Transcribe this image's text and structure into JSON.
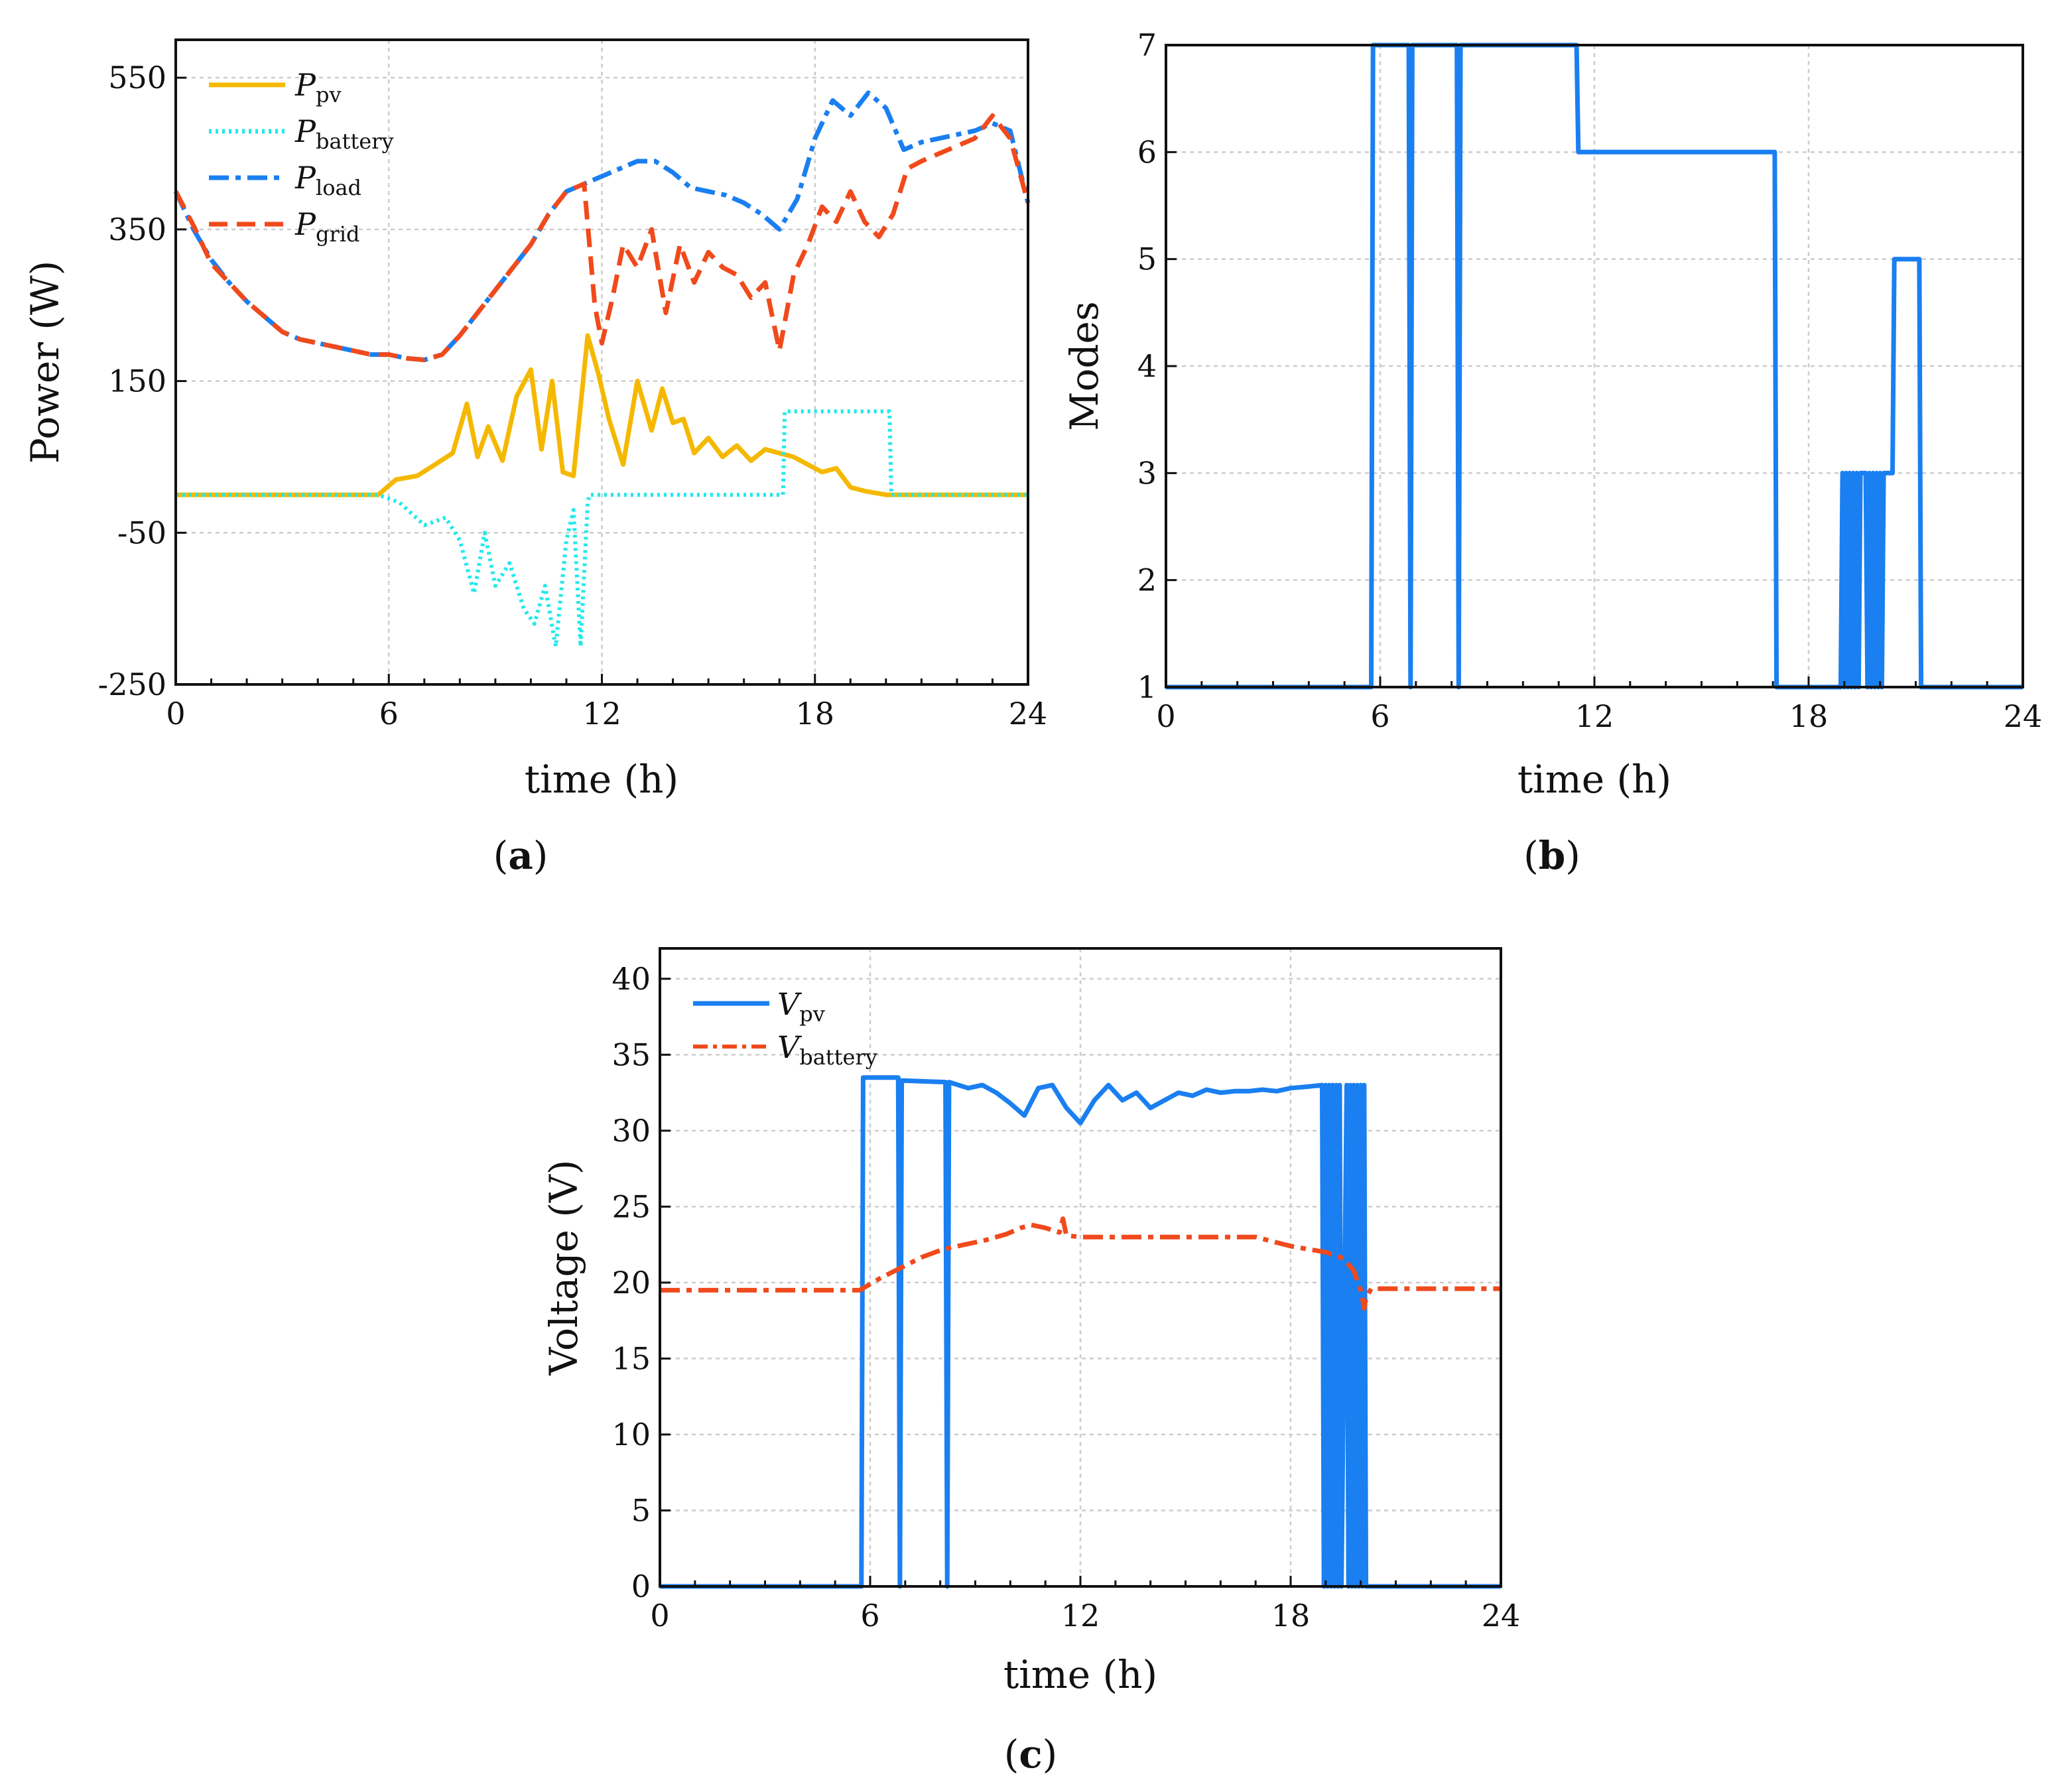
{
  "chart_data": [
    {
      "type": "line",
      "panel": "(a)",
      "panel_letter": "a",
      "xlabel": "time (h)",
      "ylabel": "Power (W)",
      "xlim": [
        0,
        24
      ],
      "ylim": [
        -250,
        600
      ],
      "xticks": [
        0,
        6,
        12,
        18,
        24
      ],
      "yticks": [
        -250,
        -50,
        150,
        350,
        550
      ],
      "xtick_labels": [
        "0",
        "6",
        "12",
        "18",
        "24"
      ],
      "ytick_labels": [
        "-250",
        "-50",
        "150",
        "350",
        "550"
      ],
      "grid": true,
      "legend_position": "top-left",
      "series": [
        {
          "name": "P_pv",
          "symbol": "P",
          "subscript": "pv",
          "color": "#f5b800",
          "style": "solid",
          "x": [
            0,
            5.7,
            6.2,
            6.8,
            7.3,
            7.8,
            8.2,
            8.5,
            8.8,
            9.2,
            9.6,
            10.0,
            10.3,
            10.6,
            10.9,
            11.2,
            11.6,
            11.9,
            12.2,
            12.6,
            13.0,
            13.4,
            13.7,
            14.0,
            14.3,
            14.6,
            15.0,
            15.4,
            15.8,
            16.2,
            16.6,
            17.0,
            17.4,
            17.8,
            18.2,
            18.6,
            19.0,
            19.4,
            20.0,
            24
          ],
          "values": [
            0,
            0,
            20,
            25,
            40,
            55,
            120,
            50,
            90,
            45,
            130,
            165,
            60,
            150,
            30,
            25,
            210,
            160,
            100,
            40,
            150,
            85,
            140,
            95,
            100,
            55,
            75,
            50,
            65,
            45,
            60,
            55,
            50,
            40,
            30,
            35,
            10,
            5,
            0,
            0
          ]
        },
        {
          "name": "P_battery",
          "symbol": "P",
          "subscript": "battery",
          "color": "#22e8ea",
          "style": "dotted",
          "x": [
            0,
            5.7,
            6.3,
            7.0,
            7.6,
            8.0,
            8.4,
            8.7,
            9.0,
            9.4,
            9.8,
            10.1,
            10.4,
            10.7,
            11.0,
            11.2,
            11.4,
            11.6,
            11.65,
            17.1,
            17.15,
            20.1,
            20.15,
            24
          ],
          "values": [
            0,
            0,
            -10,
            -40,
            -30,
            -60,
            -130,
            -50,
            -120,
            -90,
            -150,
            -170,
            -120,
            -200,
            -60,
            -20,
            -200,
            -10,
            0,
            0,
            110,
            110,
            0,
            0
          ]
        },
        {
          "name": "P_load",
          "symbol": "P",
          "subscript": "load",
          "color": "#1a7ff0",
          "style": "dashdot",
          "x": [
            0,
            0.5,
            1.0,
            1.5,
            2.0,
            2.5,
            3.0,
            3.5,
            4.0,
            4.5,
            5.0,
            5.5,
            6.0,
            6.5,
            7.0,
            7.5,
            8.0,
            8.5,
            9.0,
            9.5,
            10.0,
            10.5,
            11.0,
            11.5,
            12.0,
            12.5,
            13.0,
            13.5,
            14.0,
            14.5,
            15.0,
            15.5,
            16.0,
            16.5,
            17.0,
            17.5,
            18.0,
            18.5,
            19.0,
            19.5,
            20.0,
            20.5,
            21.0,
            21.5,
            22.0,
            22.5,
            23.0,
            23.5,
            24.0
          ],
          "values": [
            400,
            350,
            310,
            280,
            255,
            235,
            215,
            205,
            200,
            195,
            190,
            185,
            185,
            180,
            178,
            185,
            210,
            240,
            270,
            300,
            330,
            370,
            400,
            410,
            420,
            430,
            440,
            440,
            425,
            405,
            400,
            395,
            385,
            370,
            350,
            390,
            470,
            520,
            500,
            530,
            510,
            455,
            465,
            470,
            475,
            480,
            490,
            480,
            385
          ]
        },
        {
          "name": "P_grid",
          "symbol": "P",
          "subscript": "grid",
          "color": "#f04a1c",
          "style": "dashed",
          "x": [
            0,
            0.5,
            1.0,
            1.5,
            2.0,
            2.5,
            3.0,
            3.5,
            4.0,
            4.5,
            5.0,
            5.5,
            6.0,
            6.5,
            7.0,
            7.5,
            8.0,
            8.5,
            9.0,
            9.5,
            10.0,
            10.5,
            11.0,
            11.5,
            11.8,
            12.0,
            12.3,
            12.6,
            13.0,
            13.4,
            13.8,
            14.2,
            14.6,
            15.0,
            15.4,
            15.8,
            16.2,
            16.6,
            17.0,
            17.4,
            17.8,
            18.2,
            18.6,
            19.0,
            19.4,
            19.8,
            20.2,
            20.6,
            21.0,
            21.5,
            22.0,
            22.5,
            23.0,
            23.5,
            24.0
          ],
          "values": [
            400,
            355,
            305,
            280,
            255,
            235,
            215,
            205,
            200,
            195,
            190,
            185,
            185,
            180,
            178,
            185,
            210,
            240,
            270,
            300,
            330,
            370,
            400,
            410,
            250,
            200,
            260,
            330,
            300,
            350,
            240,
            330,
            280,
            320,
            300,
            290,
            260,
            280,
            190,
            290,
            330,
            380,
            360,
            400,
            360,
            340,
            370,
            430,
            440,
            450,
            460,
            470,
            500,
            470,
            385
          ]
        }
      ]
    },
    {
      "type": "line",
      "panel": "(b)",
      "panel_letter": "b",
      "xlabel": "time (h)",
      "ylabel": "Modes",
      "xlim": [
        0,
        24
      ],
      "ylim": [
        1,
        7
      ],
      "xticks": [
        0,
        6,
        12,
        18,
        24
      ],
      "yticks": [
        1,
        2,
        3,
        4,
        5,
        6,
        7
      ],
      "xtick_labels": [
        "0",
        "6",
        "12",
        "18",
        "24"
      ],
      "ytick_labels": [
        "1",
        "2",
        "3",
        "4",
        "5",
        "6",
        "7"
      ],
      "grid": true,
      "series": [
        {
          "name": "Mode",
          "color": "#1a7ff0",
          "style": "solid",
          "x": [
            0,
            5.75,
            5.8,
            6.8,
            6.85,
            6.9,
            8.15,
            8.2,
            8.25,
            11.5,
            11.55,
            17.05,
            17.1,
            18.9,
            18.95,
            19.0,
            19.05,
            19.1,
            19.15,
            19.2,
            19.25,
            19.3,
            19.35,
            19.4,
            19.45,
            19.6,
            19.65,
            19.7,
            19.75,
            19.8,
            19.85,
            19.9,
            19.95,
            20.0,
            20.05,
            20.1,
            20.15,
            20.35,
            20.4,
            21.1,
            21.15,
            24
          ],
          "values": [
            1,
            1,
            7,
            7,
            1,
            7,
            7,
            1,
            7,
            7,
            6,
            6,
            1,
            1,
            3,
            1,
            3,
            1,
            3,
            1,
            3,
            1,
            3,
            1,
            3,
            3,
            1,
            3,
            1,
            3,
            1,
            3,
            1,
            3,
            1,
            3,
            3,
            3,
            5,
            5,
            1,
            1
          ]
        }
      ]
    },
    {
      "type": "line",
      "panel": "(c)",
      "panel_letter": "c",
      "xlabel": "time (h)",
      "ylabel": "Voltage (V)",
      "xlim": [
        0,
        24
      ],
      "ylim": [
        0,
        42
      ],
      "xticks": [
        0,
        6,
        12,
        18,
        24
      ],
      "yticks": [
        0,
        5,
        10,
        15,
        20,
        25,
        30,
        35,
        40
      ],
      "xtick_labels": [
        "0",
        "6",
        "12",
        "18",
        "24"
      ],
      "ytick_labels": [
        "0",
        "5",
        "10",
        "15",
        "20",
        "25",
        "30",
        "35",
        "40"
      ],
      "grid": true,
      "legend_position": "top-left",
      "series": [
        {
          "name": "V_pv",
          "symbol": "V",
          "subscript": "pv",
          "color": "#1a7ff0",
          "style": "solid",
          "x": [
            0,
            5.75,
            5.8,
            6.8,
            6.85,
            6.9,
            8.15,
            8.2,
            8.25,
            8.8,
            9.2,
            9.6,
            10.0,
            10.4,
            10.8,
            11.2,
            11.6,
            12.0,
            12.4,
            12.8,
            13.2,
            13.6,
            14.0,
            14.4,
            14.8,
            15.2,
            15.6,
            16.0,
            16.4,
            16.8,
            17.2,
            17.6,
            18.0,
            18.5,
            18.9,
            18.95,
            19.0,
            19.05,
            19.1,
            19.15,
            19.2,
            19.25,
            19.3,
            19.35,
            19.4,
            19.45,
            19.6,
            19.65,
            19.7,
            19.75,
            19.8,
            19.85,
            19.9,
            19.95,
            20.0,
            20.05,
            20.1,
            20.15,
            24
          ],
          "values": [
            0,
            0,
            33.5,
            33.5,
            0,
            33.3,
            33.2,
            0,
            33.2,
            32.8,
            33.0,
            32.5,
            31.8,
            31.0,
            32.8,
            33.0,
            31.5,
            30.5,
            32.0,
            33.0,
            32.0,
            32.5,
            31.5,
            32.0,
            32.5,
            32.3,
            32.7,
            32.5,
            32.6,
            32.6,
            32.7,
            32.6,
            32.8,
            32.9,
            33.0,
            0,
            33.0,
            0,
            33.0,
            0,
            33.0,
            0,
            33.0,
            0,
            33.0,
            0,
            33.0,
            0,
            33.0,
            0,
            33.0,
            0,
            33.0,
            0,
            33.0,
            0,
            33.0,
            0,
            0
          ]
        },
        {
          "name": "V_battery",
          "symbol": "V",
          "subscript": "battery",
          "color": "#f04a1c",
          "style": "dashdot",
          "x": [
            0,
            5.7,
            6.3,
            6.9,
            7.5,
            8.1,
            8.7,
            9.3,
            9.9,
            10.3,
            10.6,
            11.0,
            11.4,
            11.5,
            11.6,
            12.0,
            13.0,
            14.0,
            15.0,
            16.0,
            17.0,
            17.5,
            18.0,
            18.5,
            19.0,
            19.5,
            19.8,
            20.0,
            20.1,
            20.15,
            20.3,
            24
          ],
          "values": [
            19.5,
            19.5,
            20.3,
            21.0,
            21.7,
            22.2,
            22.5,
            22.8,
            23.2,
            23.6,
            23.8,
            23.6,
            23.3,
            24.2,
            23.1,
            23.0,
            23.0,
            23.0,
            23.0,
            23.0,
            23.0,
            22.7,
            22.4,
            22.2,
            22.0,
            21.6,
            20.8,
            19.5,
            18.3,
            19.0,
            19.6,
            19.6
          ]
        }
      ]
    }
  ]
}
